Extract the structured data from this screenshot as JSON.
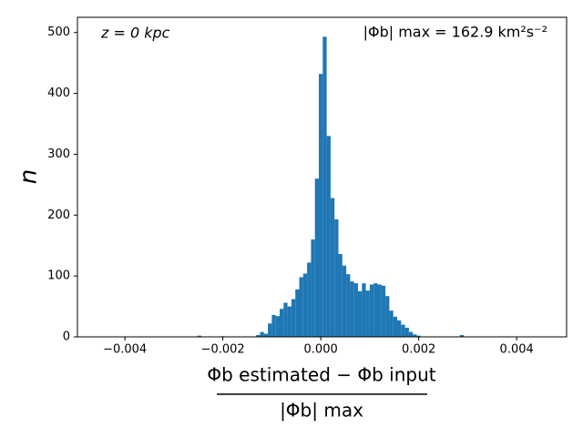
{
  "chart_data": {
    "type": "histogram",
    "annotations": [
      "z = 0 kpc",
      "|Φb| max = 162.9 km²s⁻²"
    ],
    "xlabel_numerator": "Φb estimated − Φb input",
    "xlabel_denominator": "|Φb| max",
    "ylabel": "n",
    "color": "#1f77b4",
    "bins": [
      -0.0026,
      -0.00252,
      -0.00244,
      -0.00236,
      -0.00228,
      -0.0022,
      -0.00212,
      -0.00204,
      -0.00196,
      -0.00188,
      -0.0018,
      -0.00172,
      -0.00164,
      -0.00156,
      -0.00148,
      -0.0014,
      -0.00132,
      -0.00124,
      -0.00116,
      -0.00108,
      -0.001,
      -0.00092,
      -0.00084,
      -0.00076,
      -0.00068,
      -0.0006,
      -0.00052,
      -0.00044,
      -0.00036,
      -0.00028,
      -0.0002,
      -0.00012,
      -4e-05,
      4e-05,
      0.00012,
      0.0002,
      0.00028,
      0.00036,
      0.00044,
      0.00052,
      0.0006,
      0.00068,
      0.00076,
      0.00084,
      0.00092,
      0.001,
      0.00108,
      0.00116,
      0.00124,
      0.00132,
      0.0014,
      0.00148,
      0.00156,
      0.00164,
      0.00172,
      0.0018,
      0.00188,
      0.00196,
      0.00204,
      0.00212,
      0.0022,
      0.00228,
      0.00236,
      0.00244,
      0.00252,
      0.0026,
      0.00268,
      0.00276,
      0.00284,
      0.00292,
      0.003
    ],
    "values": [
      0,
      2,
      0,
      0,
      0,
      0,
      0,
      1,
      0,
      0,
      0,
      0,
      0,
      0,
      0,
      0,
      3,
      8,
      5,
      22,
      36,
      34,
      46,
      56,
      50,
      62,
      78,
      98,
      104,
      122,
      160,
      260,
      432,
      493,
      330,
      228,
      193,
      136,
      117,
      103,
      91,
      88,
      75,
      88,
      76,
      86,
      88,
      86,
      84,
      67,
      43,
      33,
      27,
      20,
      15,
      8,
      4,
      2,
      0,
      0,
      0,
      0,
      0,
      0,
      0,
      0,
      0,
      0,
      3,
      0
    ],
    "xlim": [
      -0.00497,
      0.00502
    ],
    "ylim": [
      0,
      525
    ],
    "xticks": [
      {
        "value": -0.004,
        "label": "−0.004"
      },
      {
        "value": -0.002,
        "label": "−0.002"
      },
      {
        "value": 0,
        "label": "0.000"
      },
      {
        "value": 0.002,
        "label": "0.002"
      },
      {
        "value": 0.004,
        "label": "0.004"
      }
    ],
    "yticks": [
      0,
      100,
      200,
      300,
      400,
      500
    ]
  }
}
